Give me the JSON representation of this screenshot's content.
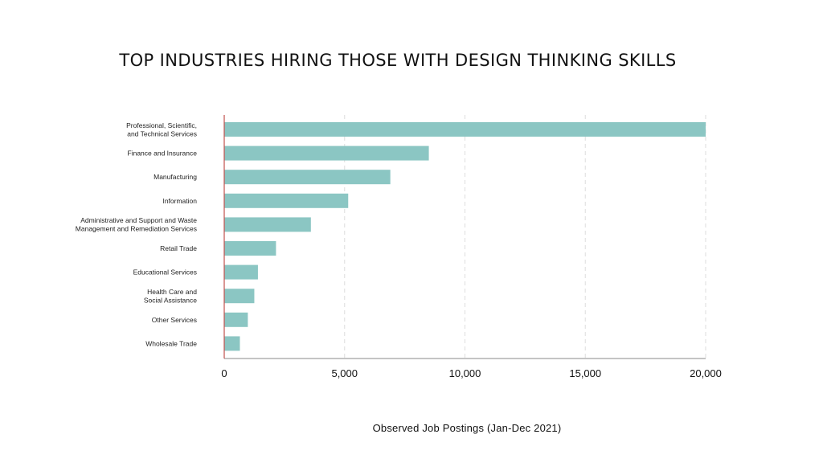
{
  "chart_data": {
    "type": "bar",
    "orientation": "horizontal",
    "title": "TOP INDUSTRIES HIRING THOSE WITH DESIGN THINKING SKILLS",
    "xlabel": "Observed Job Postings (Jan-Dec 2021)",
    "ylabel": "",
    "xlim": [
      0,
      20000
    ],
    "xticks": [
      0,
      5000,
      10000,
      15000,
      20000
    ],
    "xtick_labels": [
      "0",
      "5,000",
      "10,000",
      "15,000",
      "20,000"
    ],
    "grid": "vertical dashed",
    "categories": [
      [
        "Professional, Scientific,",
        "and Technical Services"
      ],
      [
        "Finance and Insurance"
      ],
      [
        "Manufacturing"
      ],
      [
        "Information"
      ],
      [
        "Administrative and Support and Waste",
        "Management and Remediation Services"
      ],
      [
        "Retail Trade"
      ],
      [
        "Educational Services"
      ],
      [
        "Health Care and",
        "Social Assistance"
      ],
      [
        "Other Services"
      ],
      [
        "Wholesale Trade"
      ]
    ],
    "values": [
      20000,
      8500,
      6900,
      5150,
      3600,
      2150,
      1400,
      1250,
      980,
      650
    ],
    "colors": {
      "bar": "#8bc6c3",
      "axis": "#c0504d",
      "grid": "#dddddd",
      "baseline": "#888888"
    }
  }
}
